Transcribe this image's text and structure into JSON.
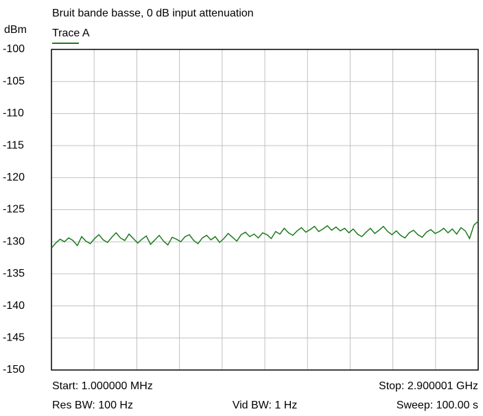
{
  "chart_data": {
    "type": "line",
    "title": "Bruit bande basse, 0 dB input attenuation",
    "ylabel": "dBm",
    "ylim": [
      -150,
      -100
    ],
    "yticks": [
      -100,
      -105,
      -110,
      -115,
      -120,
      -125,
      -130,
      -135,
      -140,
      -145,
      -150
    ],
    "grid": true,
    "series": [
      {
        "name": "Trace A",
        "color": "#1b7a1b",
        "values": [
          -131.0,
          -130.2,
          -129.6,
          -130.0,
          -129.4,
          -129.8,
          -130.6,
          -129.2,
          -129.9,
          -130.3,
          -129.5,
          -128.9,
          -129.7,
          -130.1,
          -129.3,
          -128.6,
          -129.4,
          -129.8,
          -128.8,
          -129.5,
          -130.2,
          -129.6,
          -129.1,
          -130.4,
          -129.7,
          -129.0,
          -129.9,
          -130.5,
          -129.3,
          -129.6,
          -130.0,
          -129.2,
          -128.9,
          -129.8,
          -130.3,
          -129.4,
          -129.0,
          -129.7,
          -129.2,
          -130.1,
          -129.5,
          -128.7,
          -129.3,
          -129.9,
          -128.9,
          -128.5,
          -129.2,
          -128.8,
          -129.4,
          -128.6,
          -128.9,
          -129.5,
          -128.4,
          -128.8,
          -127.9,
          -128.6,
          -129.0,
          -128.3,
          -127.8,
          -128.5,
          -128.1,
          -127.6,
          -128.4,
          -128.0,
          -127.5,
          -128.2,
          -127.7,
          -128.3,
          -127.9,
          -128.6,
          -128.0,
          -128.8,
          -129.2,
          -128.5,
          -127.9,
          -128.7,
          -128.2,
          -127.6,
          -128.4,
          -128.9,
          -128.3,
          -129.0,
          -129.4,
          -128.6,
          -128.2,
          -128.9,
          -129.3,
          -128.5,
          -128.1,
          -128.7,
          -128.4,
          -127.9,
          -128.6,
          -128.0,
          -128.8,
          -127.8,
          -128.3,
          -129.5,
          -127.4,
          -126.8
        ]
      }
    ],
    "annotations": [
      "Start: 1.000000 MHz",
      "Stop: 2.900001 GHz",
      "Res BW: 100 Hz",
      "Vid BW: 1 Hz",
      "Sweep: 100.00 s"
    ]
  }
}
